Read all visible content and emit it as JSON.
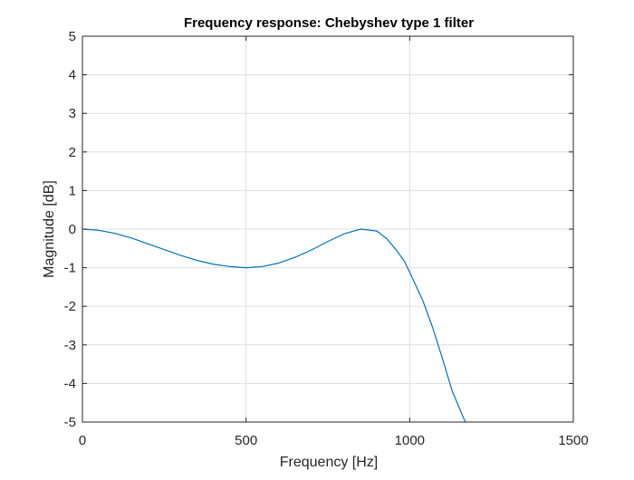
{
  "chart_data": {
    "type": "line",
    "title": "Frequency response: Chebyshev type 1 filter",
    "xlabel": "Frequency [Hz]",
    "ylabel": "Magnitude [dB]",
    "xlim": [
      0,
      1500
    ],
    "ylim": [
      -5,
      5
    ],
    "xticks": [
      0,
      500,
      1000,
      1500
    ],
    "yticks": [
      -5,
      -4,
      -3,
      -2,
      -1,
      0,
      1,
      2,
      3,
      4,
      5
    ],
    "grid": true,
    "legend": "none",
    "series": [
      {
        "color": "#0072bd",
        "x": [
          0,
          50,
          100,
          150,
          200,
          250,
          300,
          350,
          400,
          450,
          500,
          550,
          600,
          650,
          700,
          750,
          800,
          850,
          900,
          930,
          960,
          985,
          1010,
          1040,
          1070,
          1100,
          1130,
          1150,
          1170
        ],
        "y": [
          0,
          -0.03,
          -0.11,
          -0.23,
          -0.38,
          -0.53,
          -0.68,
          -0.81,
          -0.91,
          -0.97,
          -1.0,
          -0.97,
          -0.88,
          -0.73,
          -0.54,
          -0.32,
          -0.12,
          0.0,
          -0.05,
          -0.25,
          -0.55,
          -0.85,
          -1.3,
          -1.85,
          -2.55,
          -3.35,
          -4.2,
          -4.6,
          -5.0
        ]
      }
    ]
  }
}
